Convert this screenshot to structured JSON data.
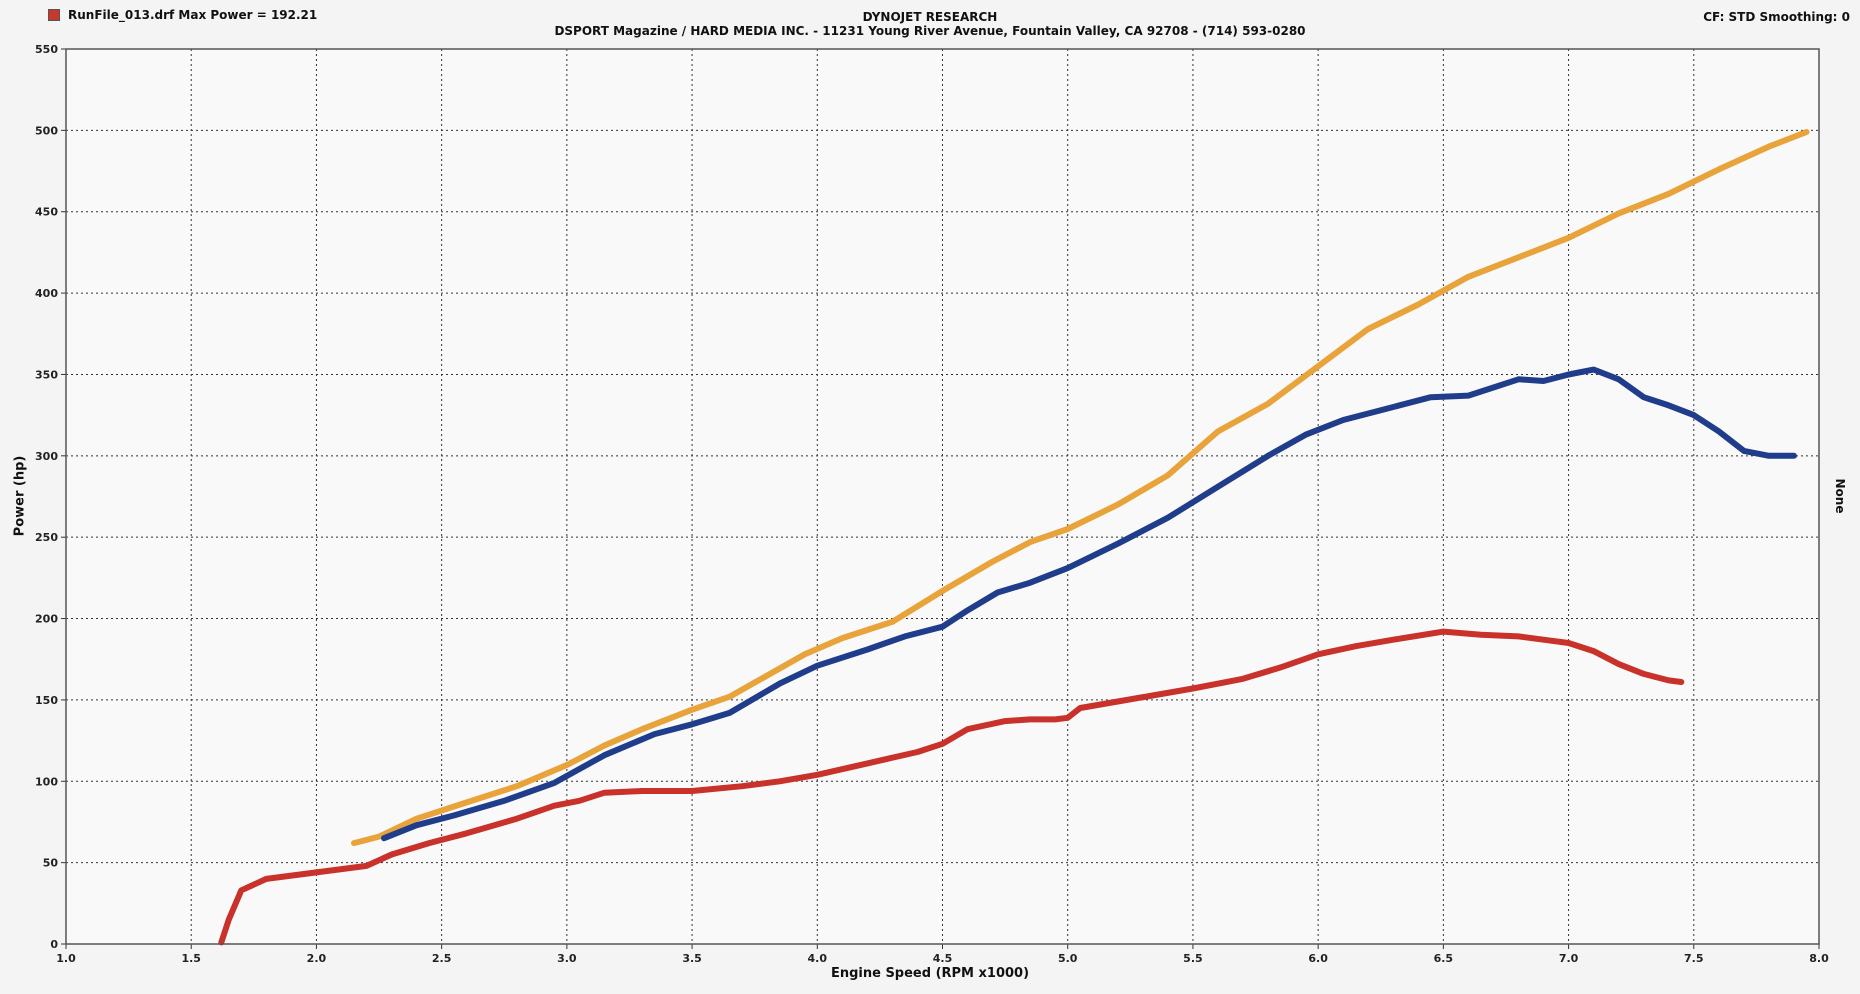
{
  "header": {
    "run_file": "RunFile_013.drf Max Power = 192.21",
    "company": "DYNOJET RESEARCH",
    "address": "DSPORT Magazine / HARD MEDIA INC. - 11231 Young River Avenue, Fountain Valley, CA 92708 - (714) 593-0280",
    "settings": "CF: STD  Smoothing: 0"
  },
  "chart_data": {
    "type": "line",
    "title": "",
    "xlabel": "Engine Speed (RPM x1000)",
    "ylabel": "Power (hp)",
    "right_label": "None",
    "xlim": [
      1.0,
      8.0
    ],
    "ylim": [
      0,
      550
    ],
    "x_ticks": [
      "1.0",
      "1.5",
      "2.0",
      "2.5",
      "3.0",
      "3.5",
      "4.0",
      "4.5",
      "5.0",
      "5.5",
      "6.0",
      "6.5",
      "7.0",
      "7.5",
      "8.0"
    ],
    "y_ticks": [
      "0",
      "50",
      "100",
      "150",
      "200",
      "250",
      "300",
      "350",
      "400",
      "450",
      "500",
      "550"
    ],
    "grid": true,
    "colors": {
      "orange": "#e8a33a",
      "blue": "#1f3d8a",
      "red": "#c8322a"
    },
    "series": [
      {
        "color": "#e8a33a",
        "points": [
          [
            2.15,
            62
          ],
          [
            2.25,
            66
          ],
          [
            2.4,
            77
          ],
          [
            2.6,
            87
          ],
          [
            2.8,
            97
          ],
          [
            3.0,
            110
          ],
          [
            3.15,
            122
          ],
          [
            3.3,
            132
          ],
          [
            3.5,
            144
          ],
          [
            3.65,
            152
          ],
          [
            3.8,
            165
          ],
          [
            3.95,
            178
          ],
          [
            4.1,
            188
          ],
          [
            4.3,
            198
          ],
          [
            4.5,
            217
          ],
          [
            4.7,
            235
          ],
          [
            4.85,
            247
          ],
          [
            5.0,
            255
          ],
          [
            5.2,
            270
          ],
          [
            5.4,
            288
          ],
          [
            5.6,
            315
          ],
          [
            5.8,
            332
          ],
          [
            6.0,
            355
          ],
          [
            6.2,
            378
          ],
          [
            6.4,
            393
          ],
          [
            6.6,
            410
          ],
          [
            6.8,
            422
          ],
          [
            7.0,
            434
          ],
          [
            7.2,
            449
          ],
          [
            7.4,
            461
          ],
          [
            7.6,
            476
          ],
          [
            7.8,
            490
          ],
          [
            7.95,
            499
          ]
        ]
      },
      {
        "color": "#1f3d8a",
        "points": [
          [
            2.27,
            65
          ],
          [
            2.4,
            73
          ],
          [
            2.55,
            79
          ],
          [
            2.75,
            88
          ],
          [
            2.95,
            99
          ],
          [
            3.15,
            116
          ],
          [
            3.35,
            129
          ],
          [
            3.5,
            135
          ],
          [
            3.65,
            142
          ],
          [
            3.85,
            160
          ],
          [
            4.0,
            171
          ],
          [
            4.2,
            181
          ],
          [
            4.35,
            189
          ],
          [
            4.5,
            195
          ],
          [
            4.6,
            205
          ],
          [
            4.72,
            216
          ],
          [
            4.85,
            222
          ],
          [
            5.0,
            231
          ],
          [
            5.2,
            246
          ],
          [
            5.4,
            262
          ],
          [
            5.6,
            281
          ],
          [
            5.8,
            300
          ],
          [
            5.95,
            313
          ],
          [
            6.1,
            322
          ],
          [
            6.3,
            330
          ],
          [
            6.45,
            336
          ],
          [
            6.6,
            337
          ],
          [
            6.7,
            342
          ],
          [
            6.8,
            347
          ],
          [
            6.9,
            346
          ],
          [
            7.0,
            350
          ],
          [
            7.1,
            353
          ],
          [
            7.2,
            347
          ],
          [
            7.3,
            336
          ],
          [
            7.4,
            331
          ],
          [
            7.5,
            325
          ],
          [
            7.6,
            315
          ],
          [
            7.7,
            303
          ],
          [
            7.8,
            300
          ],
          [
            7.9,
            300
          ]
        ]
      },
      {
        "color": "#c8322a",
        "points": [
          [
            1.62,
            1
          ],
          [
            1.65,
            15
          ],
          [
            1.7,
            33
          ],
          [
            1.8,
            40
          ],
          [
            1.95,
            43
          ],
          [
            2.1,
            46
          ],
          [
            2.2,
            48
          ],
          [
            2.3,
            55
          ],
          [
            2.45,
            62
          ],
          [
            2.6,
            68
          ],
          [
            2.8,
            77
          ],
          [
            2.95,
            85
          ],
          [
            3.05,
            88
          ],
          [
            3.15,
            93
          ],
          [
            3.3,
            94
          ],
          [
            3.5,
            94
          ],
          [
            3.7,
            97
          ],
          [
            3.85,
            100
          ],
          [
            4.0,
            104
          ],
          [
            4.2,
            111
          ],
          [
            4.4,
            118
          ],
          [
            4.5,
            123
          ],
          [
            4.6,
            132
          ],
          [
            4.75,
            137
          ],
          [
            4.85,
            138
          ],
          [
            4.95,
            138
          ],
          [
            5.0,
            139
          ],
          [
            5.05,
            145
          ],
          [
            5.2,
            149
          ],
          [
            5.35,
            153
          ],
          [
            5.5,
            157
          ],
          [
            5.7,
            163
          ],
          [
            5.85,
            170
          ],
          [
            6.0,
            178
          ],
          [
            6.15,
            183
          ],
          [
            6.3,
            187
          ],
          [
            6.5,
            192
          ],
          [
            6.65,
            190
          ],
          [
            6.8,
            189
          ],
          [
            6.9,
            187
          ],
          [
            7.0,
            185
          ],
          [
            7.1,
            180
          ],
          [
            7.2,
            172
          ],
          [
            7.3,
            166
          ],
          [
            7.4,
            162
          ],
          [
            7.45,
            161
          ]
        ]
      }
    ]
  }
}
